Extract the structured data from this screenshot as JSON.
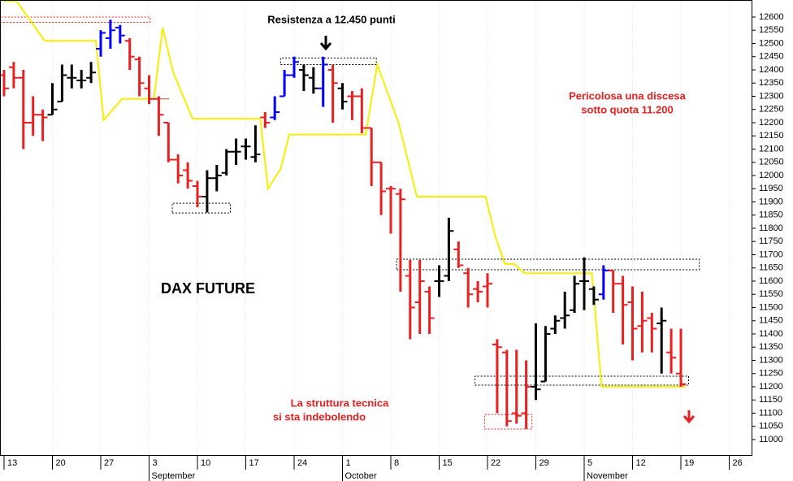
{
  "chart_data": {
    "type": "ohlc",
    "title": "DAX FUTURE",
    "annotations": [
      "Resistenza a 12.450 punti",
      "Pericolosa una discesa",
      "sotto quota 11.200",
      "La struttura tecnica",
      "si sta indebolendo"
    ],
    "x": [
      0,
      1,
      2,
      3,
      4,
      5,
      6,
      7,
      8,
      9,
      10,
      11,
      12,
      13,
      14,
      15,
      16,
      17,
      18,
      19,
      20,
      21,
      22,
      23,
      24,
      25,
      26,
      27,
      28,
      29,
      30,
      31,
      32,
      33,
      34,
      35,
      36,
      37,
      38,
      39,
      40,
      41,
      42,
      43,
      44,
      45,
      46,
      47,
      48,
      49,
      50,
      51,
      52,
      53,
      54,
      55,
      56,
      57,
      58,
      59,
      60,
      61,
      62,
      63,
      64,
      65,
      66,
      67,
      68,
      69,
      70
    ],
    "open": [
      12380,
      12410,
      12370,
      12200,
      12230,
      12230,
      12280,
      12370,
      12360,
      12370,
      12480,
      12520,
      12560,
      12510,
      12440,
      12330,
      12290,
      12200,
      12060,
      12020,
      11960,
      11920,
      11990,
      12010,
      12090,
      12110,
      12070,
      12220,
      12220,
      12300,
      12380,
      12400,
      12370,
      12330,
      12400,
      12330,
      12300,
      12300,
      12180,
      12050,
      11950,
      11930,
      11620,
      11520,
      11560,
      11600,
      11620,
      11720,
      11630,
      11570,
      11580,
      11360,
      11330,
      11100,
      11100,
      11200,
      11220,
      11420,
      11460,
      11490,
      11600,
      11570,
      11550,
      11640,
      11590,
      11520,
      11430,
      11460,
      11440,
      11330,
      11250
    ],
    "high": [
      12400,
      12430,
      12400,
      12300,
      12250,
      12350,
      12420,
      12420,
      12400,
      12430,
      12550,
      12590,
      12570,
      12520,
      12450,
      12380,
      12300,
      12200,
      12080,
      12050,
      11980,
      12020,
      12040,
      12100,
      12140,
      12140,
      12190,
      12240,
      12300,
      12400,
      12450,
      12420,
      12410,
      12450,
      12420,
      12350,
      12320,
      12330,
      12180,
      12050,
      11960,
      11950,
      11680,
      11680,
      11580,
      11660,
      11840,
      11750,
      11650,
      11600,
      11630,
      11380,
      11340,
      11340,
      11300,
      11440,
      11430,
      11470,
      11560,
      11620,
      11690,
      11580,
      11660,
      11640,
      11620,
      11580,
      11560,
      11480,
      11500,
      11420,
      11420
    ],
    "low": [
      12300,
      12330,
      12100,
      12150,
      12130,
      12230,
      12280,
      12330,
      12330,
      12350,
      12450,
      12480,
      12500,
      12400,
      12300,
      12270,
      12150,
      12050,
      11970,
      11950,
      11880,
      11860,
      11940,
      12000,
      12040,
      12060,
      12050,
      12180,
      12210,
      12300,
      12370,
      12320,
      12310,
      12260,
      12200,
      12250,
      12210,
      12160,
      11960,
      11850,
      11780,
      11560,
      11380,
      11400,
      11400,
      11540,
      11600,
      11650,
      11500,
      11520,
      11500,
      11100,
      11050,
      11060,
      11040,
      11150,
      11220,
      11400,
      11420,
      11480,
      11490,
      11510,
      11530,
      11480,
      11360,
      11300,
      11330,
      11330,
      11250,
      11250,
      11200
    ],
    "close": [
      12330,
      12370,
      12200,
      12230,
      12220,
      12250,
      12380,
      12370,
      12360,
      12390,
      12540,
      12550,
      12530,
      12450,
      12350,
      12290,
      12230,
      12060,
      12000,
      11980,
      11920,
      11990,
      12000,
      12090,
      12090,
      12110,
      12080,
      12200,
      12240,
      12380,
      12430,
      12380,
      12330,
      12420,
      12350,
      12280,
      12300,
      12180,
      12050,
      11940,
      11950,
      11910,
      11500,
      11600,
      11460,
      11600,
      11790,
      11660,
      11550,
      11560,
      11590,
      11350,
      11070,
      11090,
      11200,
      11190,
      11400,
      11450,
      11470,
      11590,
      11600,
      11530,
      11640,
      11590,
      11510,
      11420,
      11450,
      11420,
      11450,
      11310,
      11210
    ],
    "colors": [
      "#e8201f",
      "#e8201f",
      "#e8201f",
      "#e8201f",
      "#e8201f",
      "#000000",
      "#000000",
      "#000000",
      "#000000",
      "#000000",
      "#0000ff",
      "#0000ff",
      "#0000ff",
      "#e8201f",
      "#e8201f",
      "#e8201f",
      "#e8201f",
      "#e8201f",
      "#e8201f",
      "#e8201f",
      "#e8201f",
      "#000000",
      "#000000",
      "#000000",
      "#000000",
      "#000000",
      "#000000",
      "#e8201f",
      "#0000ff",
      "#0000ff",
      "#0000ff",
      "#000000",
      "#000000",
      "#0000ff",
      "#e8201f",
      "#000000",
      "#e8201f",
      "#e8201f",
      "#e8201f",
      "#e8201f",
      "#e8201f",
      "#e8201f",
      "#e8201f",
      "#e8201f",
      "#e8201f",
      "#000000",
      "#000000",
      "#e8201f",
      "#e8201f",
      "#e8201f",
      "#e8201f",
      "#e8201f",
      "#e8201f",
      "#e8201f",
      "#e8201f",
      "#000000",
      "#000000",
      "#000000",
      "#000000",
      "#000000",
      "#000000",
      "#000000",
      "#0000ff",
      "#e8201f",
      "#e8201f",
      "#e8201f",
      "#e8201f",
      "#e8201f",
      "#000000",
      "#e8201f",
      "#e8201f"
    ],
    "stop_line": {
      "color": "#f7ee00",
      "x": [
        0,
        1.3,
        4.2,
        9.5,
        10.3,
        12.2,
        15.5,
        16.4,
        17.5,
        19.5,
        26.5,
        27.3,
        28.6,
        29.5,
        37.4,
        38.6,
        40.8,
        42.7,
        49.8,
        50.8,
        51.8,
        52.8,
        53.8,
        60.8,
        61.8,
        70.5
      ],
      "values": [
        12660,
        12660,
        12510,
        12510,
        12210,
        12290,
        12290,
        12560,
        12390,
        12215,
        12215,
        11950,
        12025,
        12155,
        12155,
        12420,
        12200,
        11920,
        11920,
        11770,
        11665,
        11665,
        11630,
        11630,
        11200,
        11200
      ]
    },
    "zones": [
      {
        "x": [
          -0.4,
          15.1
        ],
        "y": [
          12580,
          12600
        ],
        "color": "#e8201f"
      },
      {
        "x": [
          12.2,
          17.1
        ],
        "y": [
          12290,
          12290
        ],
        "color": "#e8201f"
      },
      {
        "x": [
          17.4,
          23.4
        ],
        "y": [
          11858,
          11895
        ],
        "color": "#000000"
      },
      {
        "x": [
          28.6,
          38.5
        ],
        "y": [
          12420,
          12445
        ],
        "color": "#000000"
      },
      {
        "x": [
          40.6,
          71.9
        ],
        "y": [
          11643,
          11683
        ],
        "color": "#000000"
      },
      {
        "x": [
          48.7,
          70.8
        ],
        "y": [
          11206,
          11240
        ],
        "color": "#000000"
      },
      {
        "x": [
          49.7,
          54.6
        ],
        "y": [
          11040,
          11095
        ],
        "color": "#e8201f"
      }
    ],
    "xlim": [
      -0.42,
      77.31
    ],
    "xticks": [
      {
        "value": 0,
        "label": "13"
      },
      {
        "value": 5,
        "label": "20"
      },
      {
        "value": 10,
        "label": "27"
      },
      {
        "value": 15,
        "label": "3"
      },
      {
        "value": 20,
        "label": "10"
      },
      {
        "value": 25,
        "label": "17"
      },
      {
        "value": 30,
        "label": "24"
      },
      {
        "value": 35,
        "label": "1"
      },
      {
        "value": 40,
        "label": "8"
      },
      {
        "value": 45,
        "label": "15"
      },
      {
        "value": 50,
        "label": "22"
      },
      {
        "value": 55,
        "label": "29"
      },
      {
        "value": 60,
        "label": "5"
      },
      {
        "value": 65,
        "label": "12"
      },
      {
        "value": 70,
        "label": "19"
      },
      {
        "value": 75,
        "label": "26"
      }
    ],
    "month_labels": [
      {
        "value": 15,
        "label": "September"
      },
      {
        "value": 35,
        "label": "October"
      },
      {
        "value": 60,
        "label": "November"
      }
    ],
    "ylim": [
      10941.5,
      12664.6
    ],
    "yticks": [
      11000,
      11050,
      11100,
      11150,
      11200,
      11250,
      11300,
      11350,
      11400,
      11450,
      11500,
      11550,
      11600,
      11650,
      11700,
      11750,
      11800,
      11850,
      11900,
      11950,
      12000,
      12050,
      12100,
      12150,
      12200,
      12250,
      12300,
      12350,
      12400,
      12450,
      12500,
      12550,
      12600
    ],
    "grid": true
  }
}
